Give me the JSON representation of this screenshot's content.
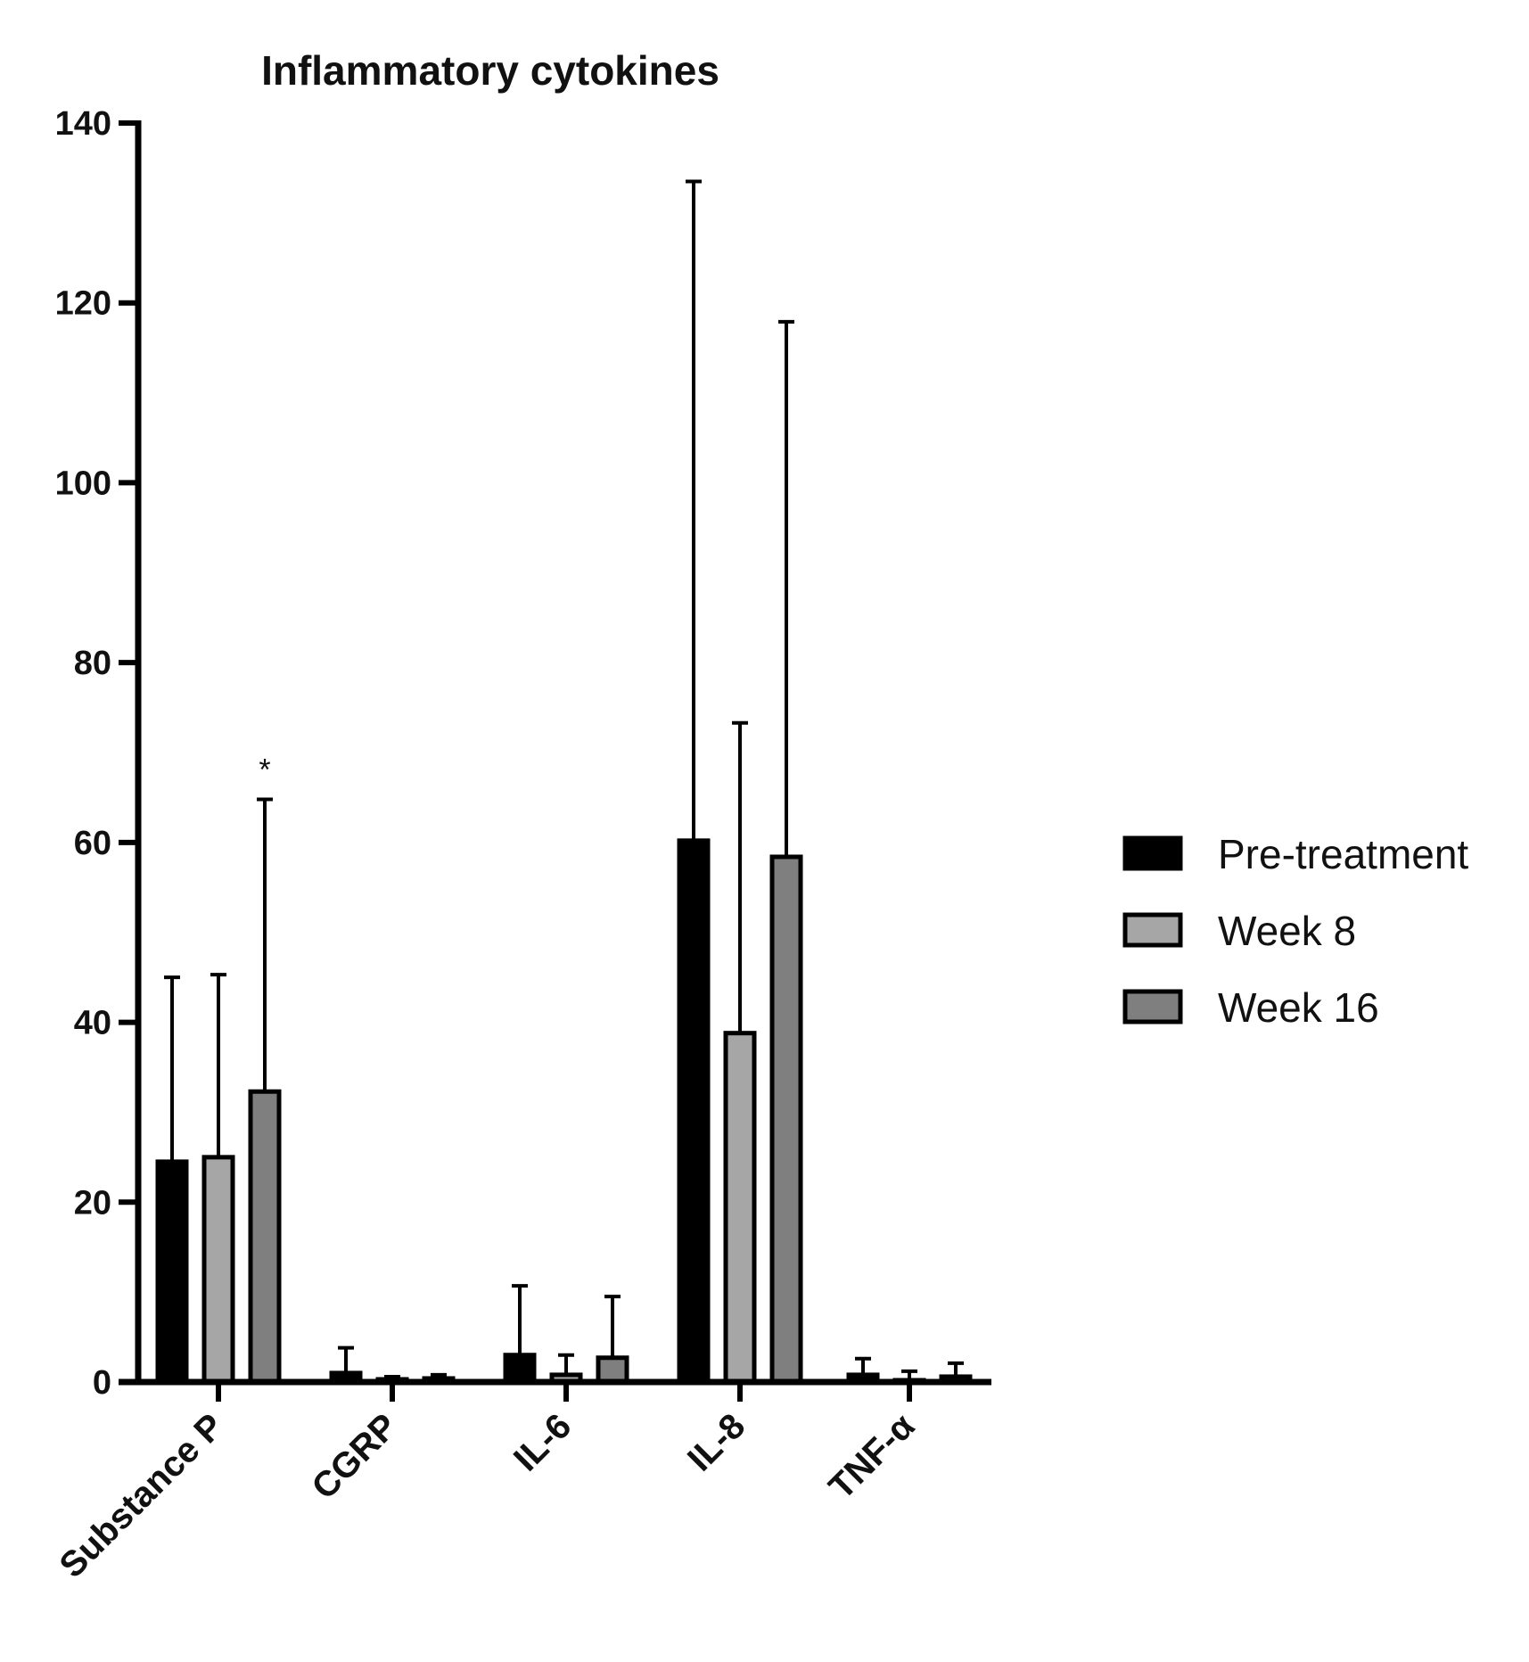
{
  "chart_data": {
    "type": "bar",
    "title": "Inflammatory cytokines",
    "xlabel": "",
    "ylabel": "",
    "ylim": [
      0,
      140
    ],
    "yticks": [
      0,
      20,
      40,
      60,
      80,
      100,
      120,
      140
    ],
    "categories": [
      "Substance P",
      "CGRP",
      "IL-6",
      "IL-8",
      "TNF-α"
    ],
    "series": [
      {
        "name": "Pre-treatment",
        "color": "#000000",
        "values": [
          24.5,
          1.0,
          3.0,
          60.2,
          0.8
        ],
        "error": [
          20.5,
          2.8,
          7.7,
          73.3,
          1.8
        ]
      },
      {
        "name": "Week 8",
        "color": "#a6a6a6",
        "values": [
          25.0,
          0.3,
          0.8,
          38.8,
          0.2
        ],
        "error": [
          20.3,
          0.3,
          2.2,
          34.5,
          1.0
        ]
      },
      {
        "name": "Week 16",
        "color": "#7f7f7f",
        "values": [
          32.3,
          0.4,
          2.7,
          58.4,
          0.6
        ],
        "error": [
          32.5,
          0.4,
          6.8,
          59.5,
          1.5
        ]
      }
    ],
    "annotations": [
      {
        "text": "*",
        "category": "Substance P",
        "series": "Week 16"
      }
    ],
    "legend": "right"
  }
}
